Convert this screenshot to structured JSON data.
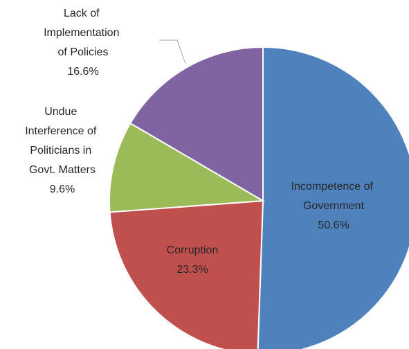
{
  "chart_data": {
    "type": "pie",
    "categories": [
      "Incompetence of Government",
      "Corruption",
      "Undue Interference of Politicians in Govt. Matters",
      "Lack of Implementation of Policies"
    ],
    "values": [
      50.6,
      23.3,
      9.6,
      16.6
    ],
    "value_labels": [
      "50.6%",
      "23.3%",
      "9.6%",
      "16.6%"
    ],
    "colors": [
      "#4f81bd",
      "#c0504d",
      "#9bbb59",
      "#8064a2"
    ]
  }
}
